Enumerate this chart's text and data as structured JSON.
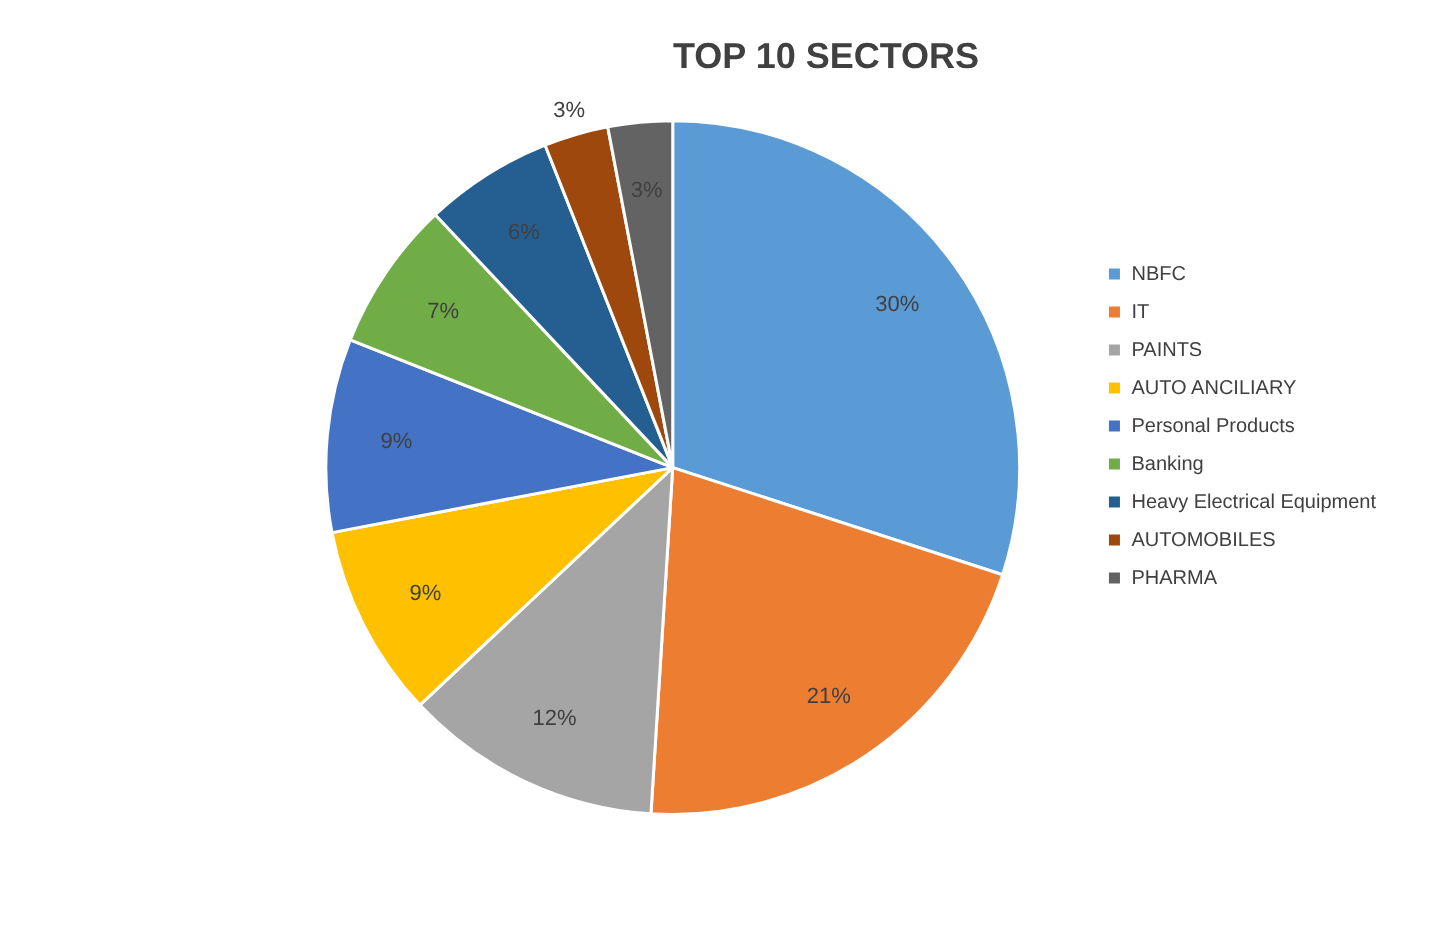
{
  "chart_data": {
    "type": "pie",
    "title": "TOP 10 SECTORS",
    "categories": [
      "NBFC",
      "IT",
      "PAINTS",
      "AUTO ANCILIARY",
      "Personal Products",
      "Banking",
      "Heavy Electrical Equipment",
      "AUTOMOBILES",
      "PHARMA"
    ],
    "values": [
      30,
      21,
      12,
      9,
      9,
      7,
      6,
      3,
      3
    ],
    "value_labels": [
      "30%",
      "21%",
      "12%",
      "9%",
      "9%",
      "7%",
      "6%",
      "3%",
      "3%"
    ],
    "colors": [
      "#5b9bd5",
      "#ed7d31",
      "#a5a5a5",
      "#ffc000",
      "#4472c4",
      "#70ad47",
      "#255e91",
      "#9e480e",
      "#636363"
    ],
    "legend": "right"
  }
}
